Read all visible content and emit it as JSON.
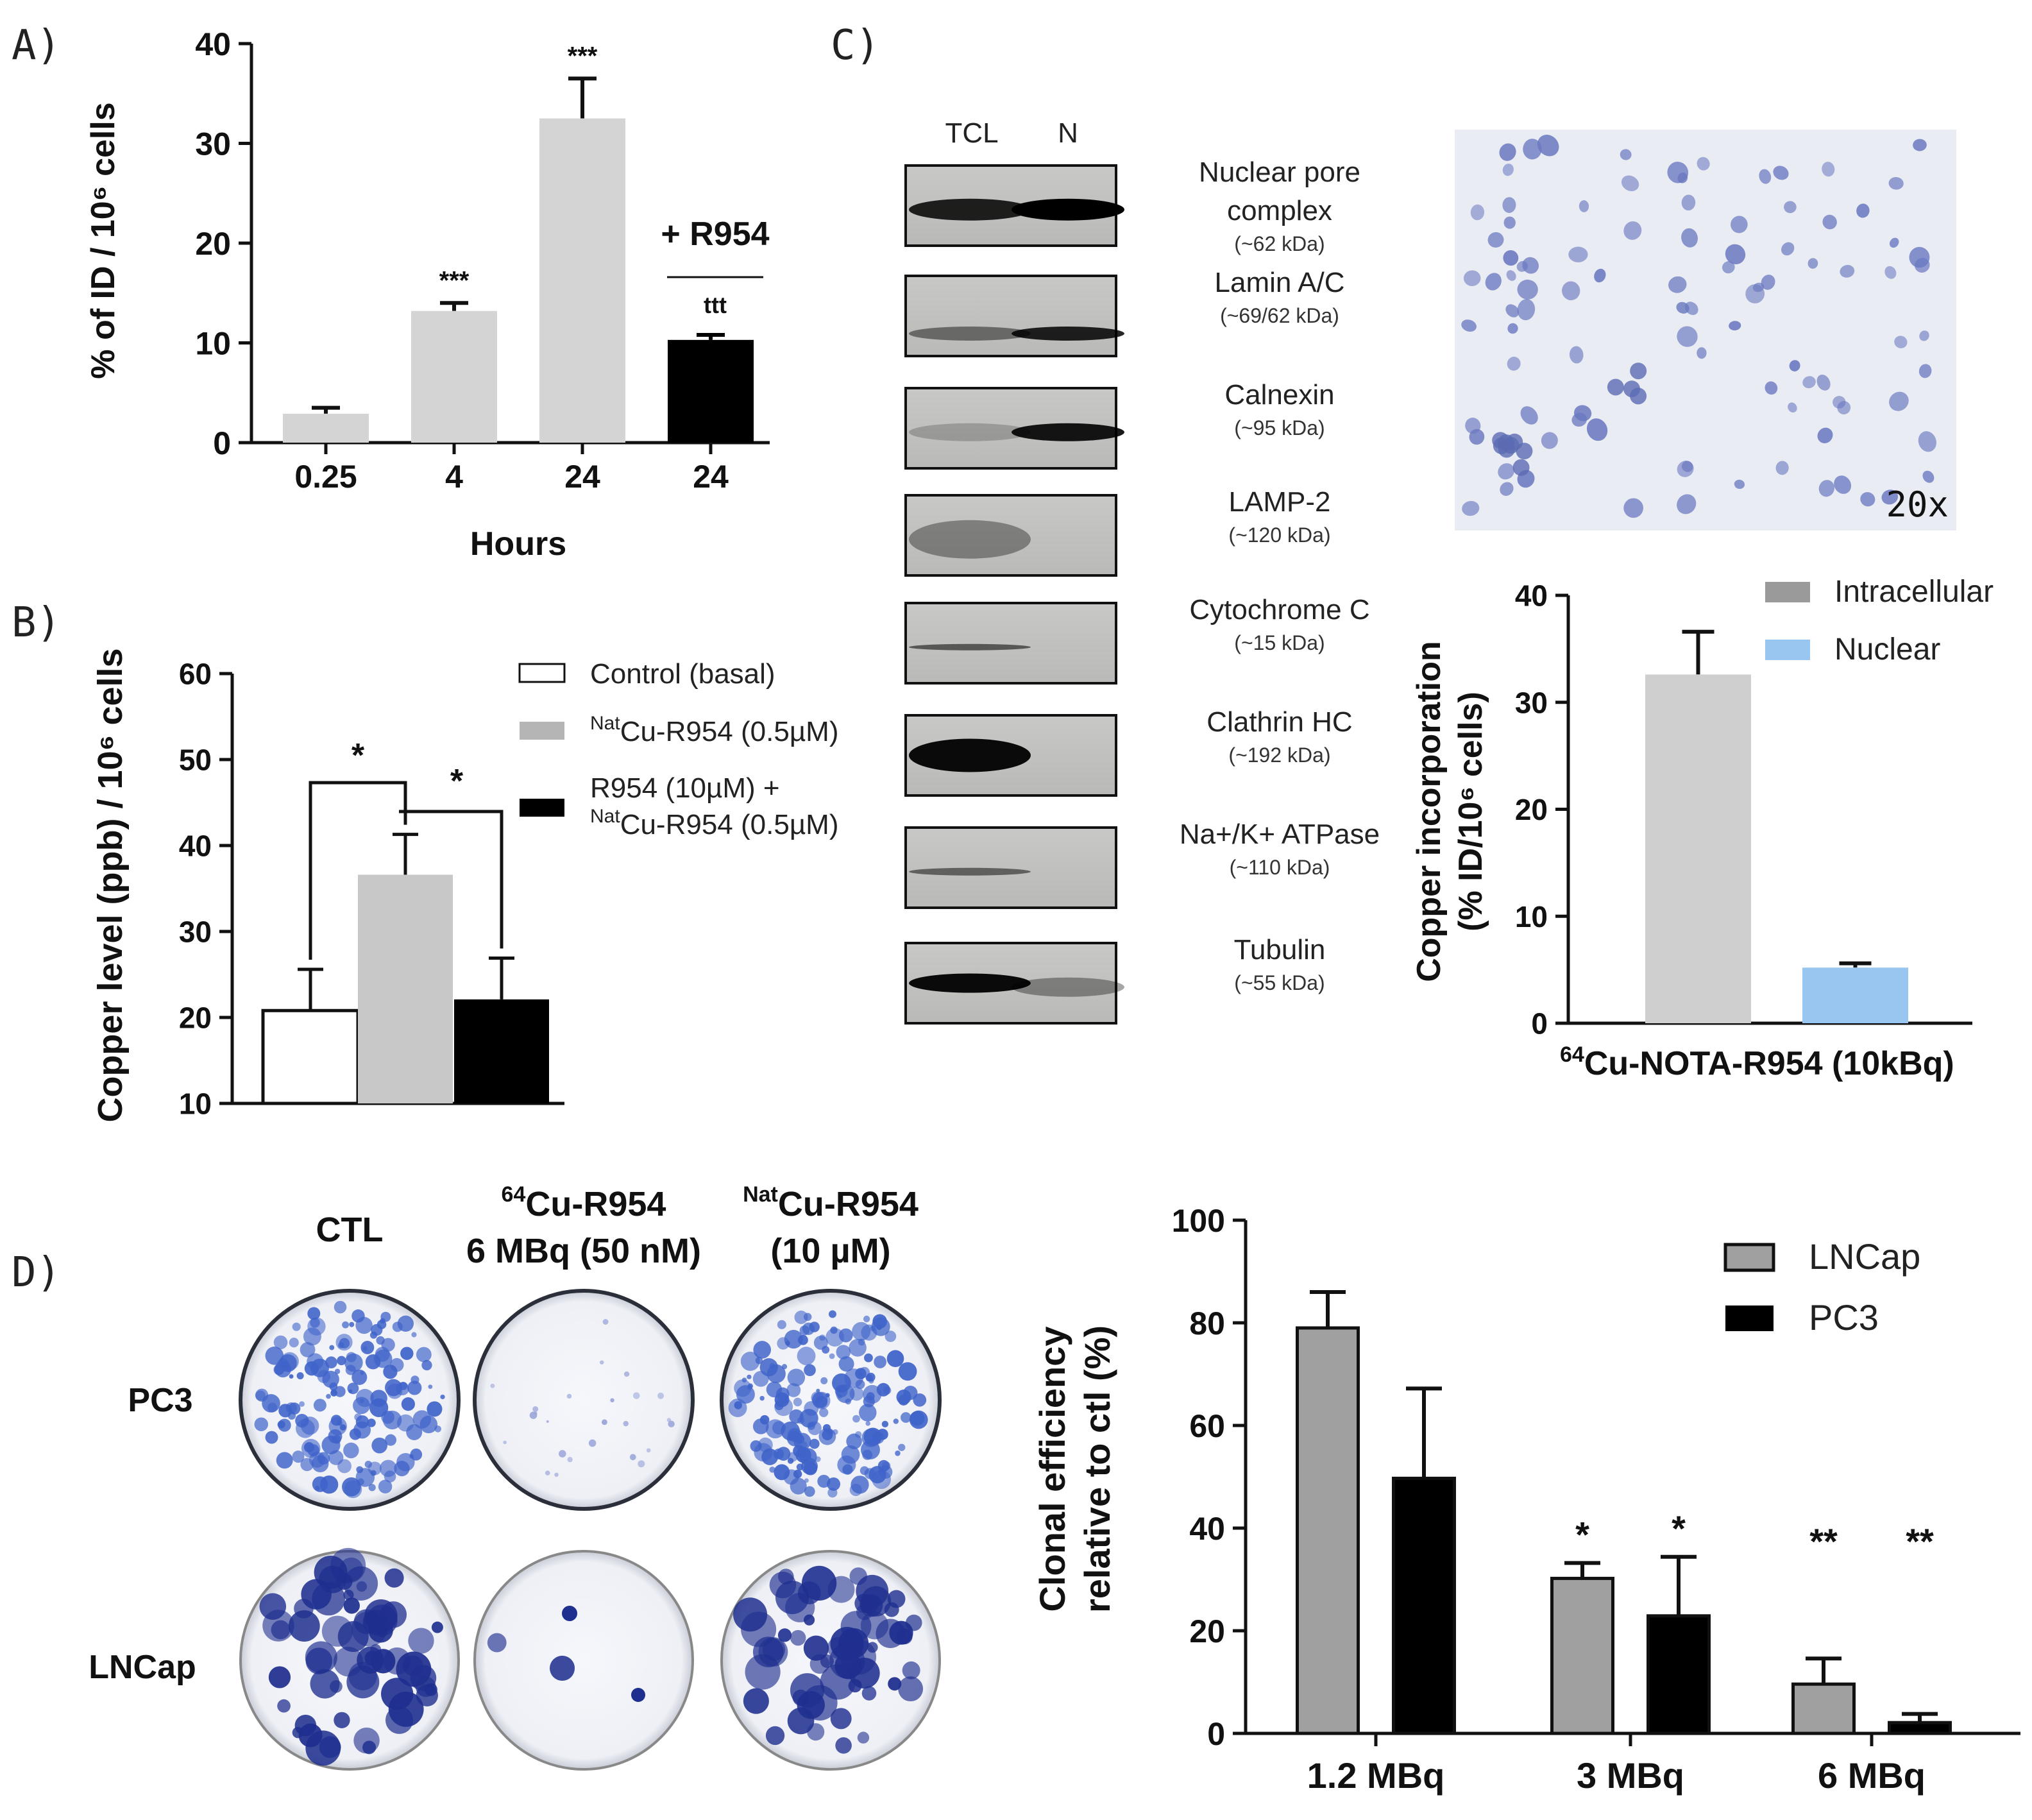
{
  "panel_labels": {
    "a": "A)",
    "b": "B)",
    "c": "C)",
    "d": "D)"
  },
  "chart_data": [
    {
      "id": "A",
      "type": "bar",
      "categories": [
        "0.25",
        "4",
        "24",
        "24"
      ],
      "values": [
        2.9,
        13.2,
        32.5,
        10.3
      ],
      "errors": [
        0.6,
        0.8,
        4.0,
        0.5
      ],
      "bar_colors": [
        "#d4d4d4",
        "#d4d4d4",
        "#d4d4d4",
        "#000000"
      ],
      "annotations": [
        "",
        "***",
        "***",
        "ttt"
      ],
      "group_label": "+ R954",
      "xlabel": "Hours",
      "ylabel": "% of ID / 10⁶ cells",
      "ylim": [
        0,
        40
      ],
      "yticks": [
        0,
        10,
        20,
        30,
        40
      ]
    },
    {
      "id": "B",
      "type": "bar",
      "series": [
        {
          "name": "Control (basal)",
          "value": 20.8,
          "error": 4.8,
          "color": "#ffffff"
        },
        {
          "name_sup": "Nat",
          "name": "Cu-R954 (0.5µM)",
          "value": 36.6,
          "error": 4.7,
          "color": "#c8c8c8"
        },
        {
          "name": "R954 (10µM) +",
          "name_line2_sup": "Nat",
          "name_line2": "Cu-R954 (0.5µM)",
          "value": 22.1,
          "error": 4.8,
          "color": "#000000"
        }
      ],
      "significance": [
        "*",
        "*"
      ],
      "ylabel": "Copper level (ppb) / 10⁶ cells",
      "ylim": [
        10,
        60
      ],
      "yticks": [
        10,
        20,
        30,
        40,
        50,
        60
      ]
    },
    {
      "id": "C",
      "type": "bar",
      "series": [
        {
          "name": "Intracellular",
          "value": 32.6,
          "error": 4.0,
          "color": "#cfcfcf",
          "legend_color": "#9a9a9a"
        },
        {
          "name": "Nuclear",
          "value": 5.2,
          "error": 0.4,
          "color": "#99c6f1",
          "legend_color": "#99c6f1"
        }
      ],
      "xlabel_sup": "64",
      "xlabel": "Cu-NOTA-R954 (10kBq)",
      "ylabel_line1": "Copper incorporation",
      "ylabel_line2": "(% ID/10⁶ cells)",
      "ylim": [
        0,
        40
      ],
      "yticks": [
        0,
        10,
        20,
        30,
        40
      ]
    },
    {
      "id": "D",
      "type": "bar",
      "categories": [
        "1.2 MBq",
        "3 MBq",
        "6 MBq"
      ],
      "series": [
        {
          "name": "LNCap",
          "values": [
            79,
            30.2,
            9.6
          ],
          "errors": [
            7,
            3,
            5
          ],
          "color": "#a0a0a0"
        },
        {
          "name": "PC3",
          "values": [
            49.7,
            22.9,
            2.1
          ],
          "errors": [
            17.5,
            11.5,
            1.7
          ],
          "color": "#000000"
        }
      ],
      "annotations": [
        [
          "",
          ""
        ],
        [
          "*",
          "*"
        ],
        [
          "**",
          "**"
        ]
      ],
      "ylabel_line1": "Clonal efficiency",
      "ylabel_line2": "relative to ctl (%)",
      "ylim": [
        0,
        100
      ],
      "yticks": [
        0,
        20,
        40,
        60,
        80,
        100
      ]
    }
  ],
  "western_blot": {
    "lanes": [
      "TCL",
      "N"
    ],
    "proteins": [
      {
        "name": [
          "Nuclear pore",
          "complex"
        ],
        "kda": "(~62 kDa)"
      },
      {
        "name": [
          "Lamin A/C"
        ],
        "kda": "(~69/62 kDa)"
      },
      {
        "name": [
          "Calnexin"
        ],
        "kda": "(~95 kDa)"
      },
      {
        "name": [
          "LAMP-2"
        ],
        "kda": "(~120 kDa)"
      },
      {
        "name": [
          "Cytochrome C"
        ],
        "kda": "(~15 kDa)"
      },
      {
        "name": [
          "Clathrin HC"
        ],
        "kda": "(~192 kDa)"
      },
      {
        "name": [
          "Na+/K+ ATPase"
        ],
        "kda": "(~110 kDa)"
      },
      {
        "name": [
          "Tubulin"
        ],
        "kda": "(~55 kDa)"
      }
    ]
  },
  "microscopy": {
    "magnification": "20x"
  },
  "clonogenic": {
    "columns": [
      {
        "lines": [
          "CTL"
        ]
      },
      {
        "sup": "64",
        "lines": [
          "Cu-R954",
          "6 MBq (50 nM)"
        ]
      },
      {
        "sup": "Nat",
        "lines": [
          "Cu-R954",
          "(10 µM)"
        ]
      }
    ],
    "rows": [
      "PC3",
      "LNCap"
    ]
  },
  "colors": {
    "plate_blue": "#3f63c9",
    "plate_dark": "#1f2f8f",
    "cell_purple": "#6a78c0"
  }
}
